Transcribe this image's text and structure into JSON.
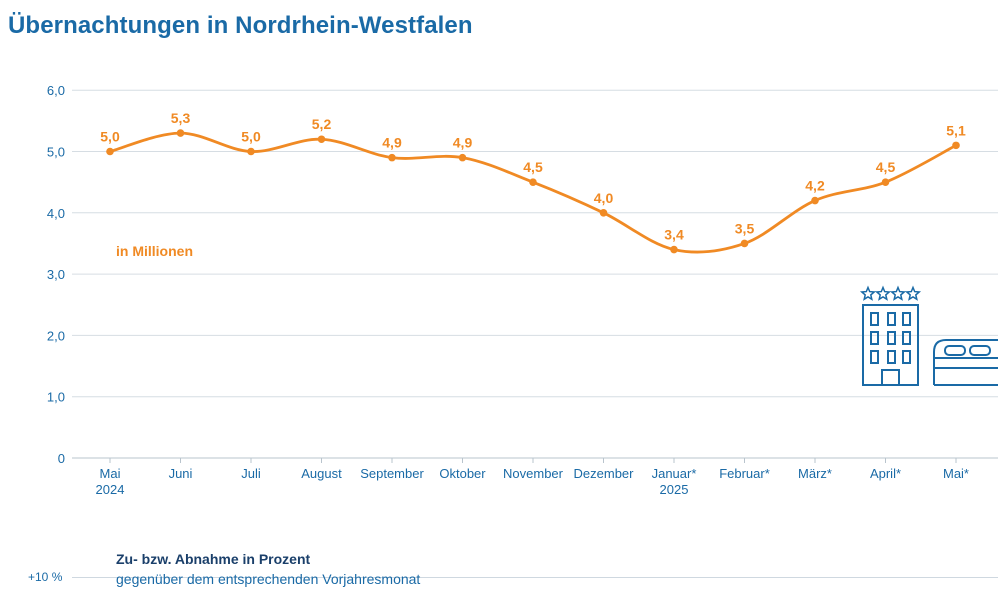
{
  "title": "Übernachtungen in Nordrhein-Westfalen",
  "unit_label": "in Millionen",
  "sub": {
    "title": "Zu- bzw. Abnahme in Prozent",
    "note": "gegenüber dem entsprechenden Vorjahresmonat",
    "tick": "+10 %"
  },
  "icons": [
    "hotel-building-icon",
    "star-icon",
    "bed-icon"
  ],
  "colors": {
    "line": "#f08a24",
    "axis": "#1a6aa6",
    "grid": "#d6dde3",
    "icon": "#1a6aa6"
  },
  "chart_data": {
    "type": "line",
    "title": "Übernachtungen in Nordrhein-Westfalen",
    "ylabel": "in Millionen",
    "ylim": [
      0,
      6.0
    ],
    "yticks": [
      "0",
      "1,0",
      "2,0",
      "3,0",
      "4,0",
      "5,0",
      "6,0"
    ],
    "grid": true,
    "categories": [
      [
        "Mai",
        "2024"
      ],
      [
        "Juni"
      ],
      [
        "Juli"
      ],
      [
        "August"
      ],
      [
        "September"
      ],
      [
        "Oktober"
      ],
      [
        "November"
      ],
      [
        "Dezember"
      ],
      [
        "Januar*",
        "2025"
      ],
      [
        "Februar*"
      ],
      [
        "März*"
      ],
      [
        "April*"
      ],
      [
        "Mai*"
      ]
    ],
    "values": [
      5.0,
      5.3,
      5.0,
      5.2,
      4.9,
      4.9,
      4.5,
      4.0,
      3.4,
      3.5,
      4.2,
      4.5,
      5.1
    ],
    "value_labels": [
      "5,0",
      "5,3",
      "5,0",
      "5,2",
      "4,9",
      "4,9",
      "4,5",
      "4,0",
      "3,4",
      "3,5",
      "4,2",
      "4,5",
      "5,1"
    ]
  }
}
